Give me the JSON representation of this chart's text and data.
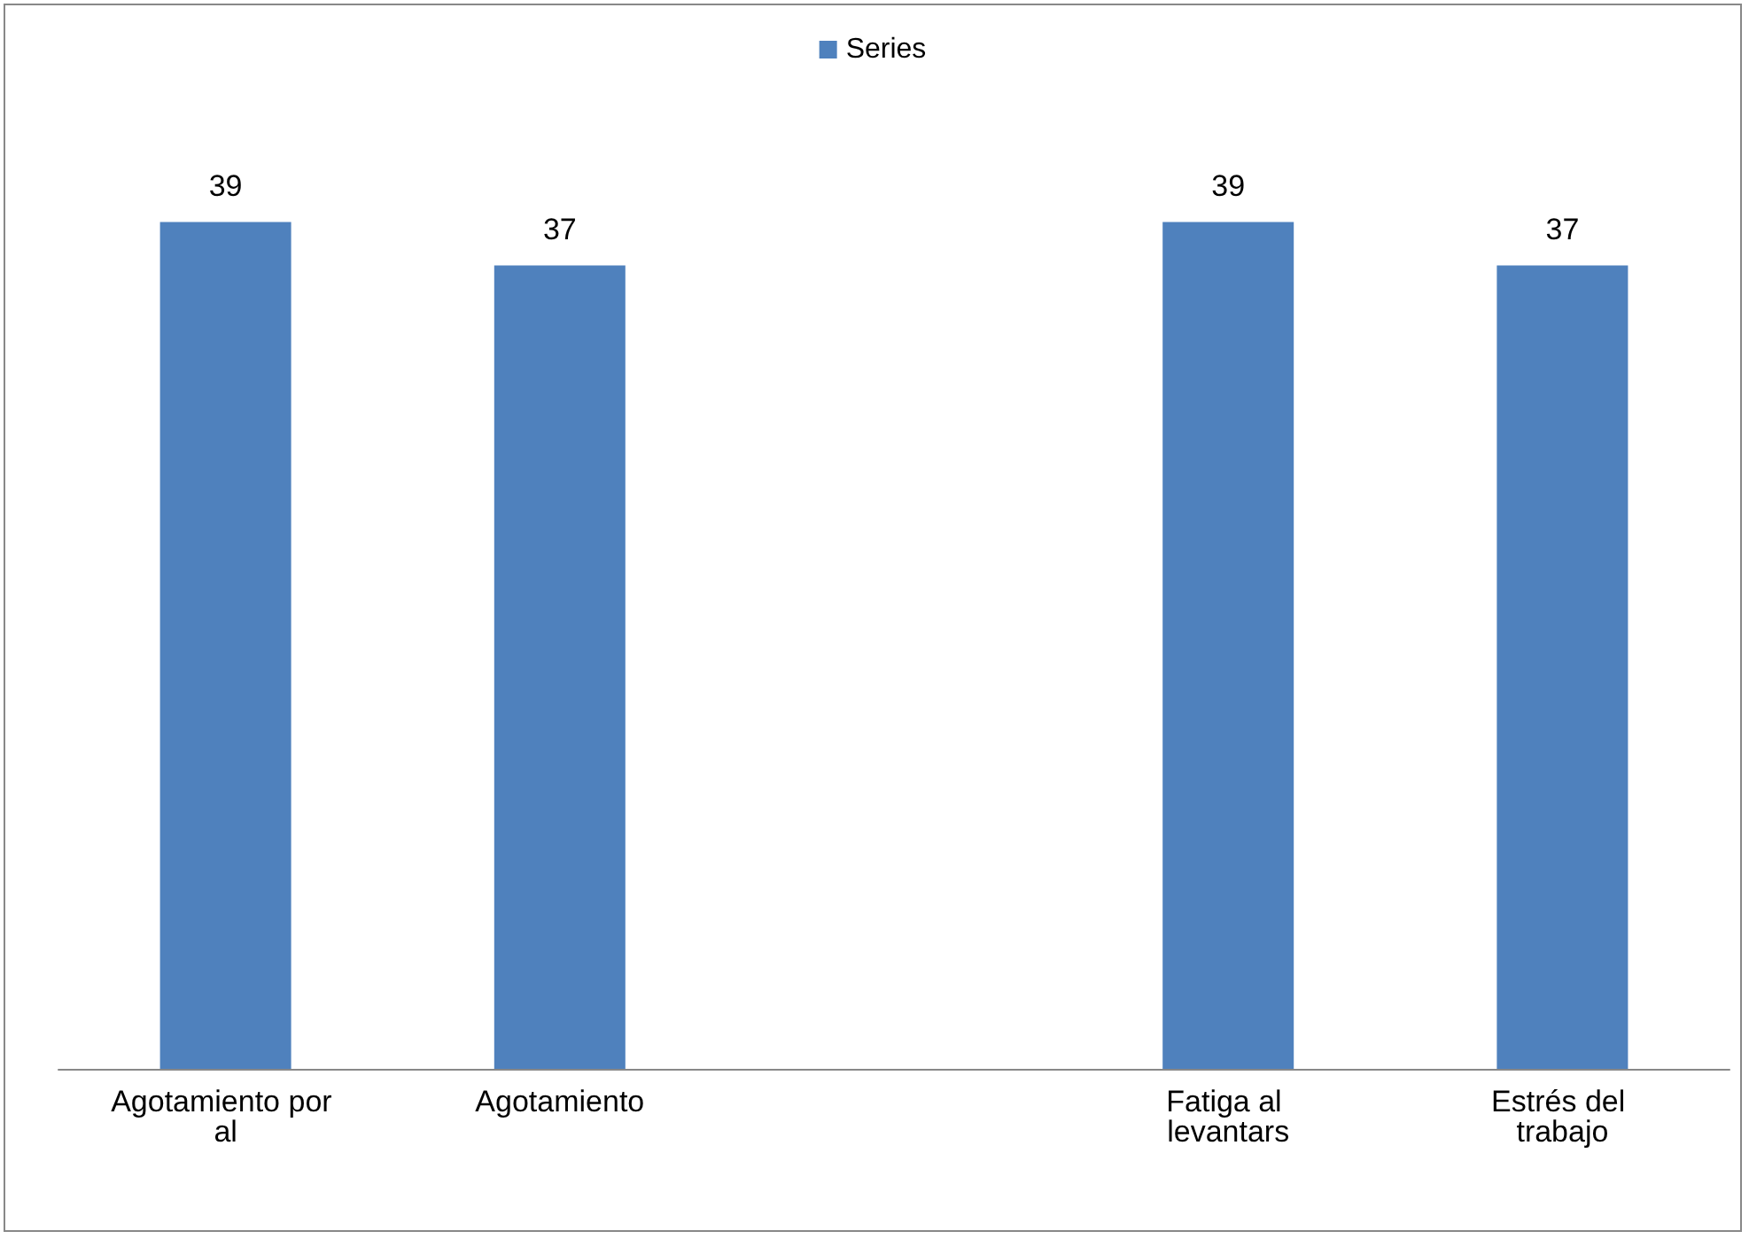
{
  "chart_data": {
    "type": "bar",
    "categories": [
      "Agotamiento por al",
      "Agotamiento",
      null,
      "Fatiga al levantars",
      "Estrés del trabajo"
    ],
    "series": [
      {
        "name": "Series",
        "color": "#4f81bd",
        "values": [
          39,
          37,
          null,
          39,
          37
        ]
      }
    ],
    "data_labels": true,
    "legend": "top",
    "grid": false
  }
}
